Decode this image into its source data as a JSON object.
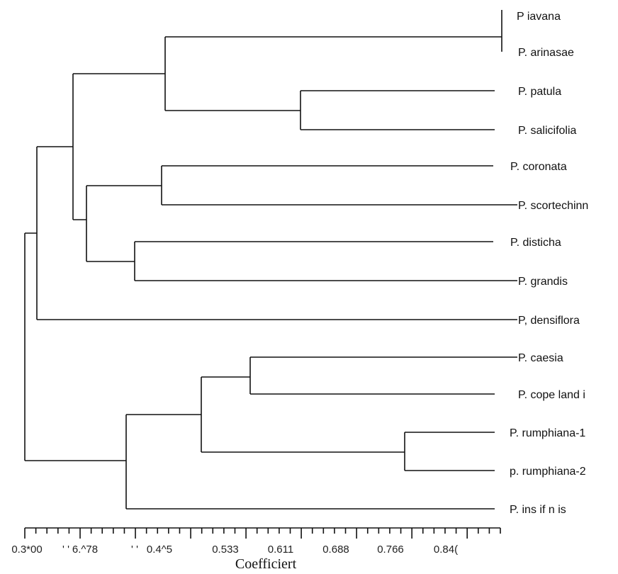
{
  "figure": {
    "axis_title": "Coefficiert",
    "tick_labels": [
      "0.3*00",
      "' '",
      "6.^78",
      "' '",
      "0.4^5",
      "0.533",
      "0.611",
      "0.688",
      "0.766",
      "0.84("
    ],
    "leaves": [
      "P  iavana",
      "P. arinasae",
      "P. patula",
      "P. salicifolia",
      "P.  coronata",
      "P. scortechinn",
      "P.  disticha",
      "P. grandis",
      "P, densiflora",
      "P. caesia",
      "P. cope land i",
      "P. rumphiana-1",
      "p.  rumphiana-2",
      "P. ins if n is"
    ]
  }
}
